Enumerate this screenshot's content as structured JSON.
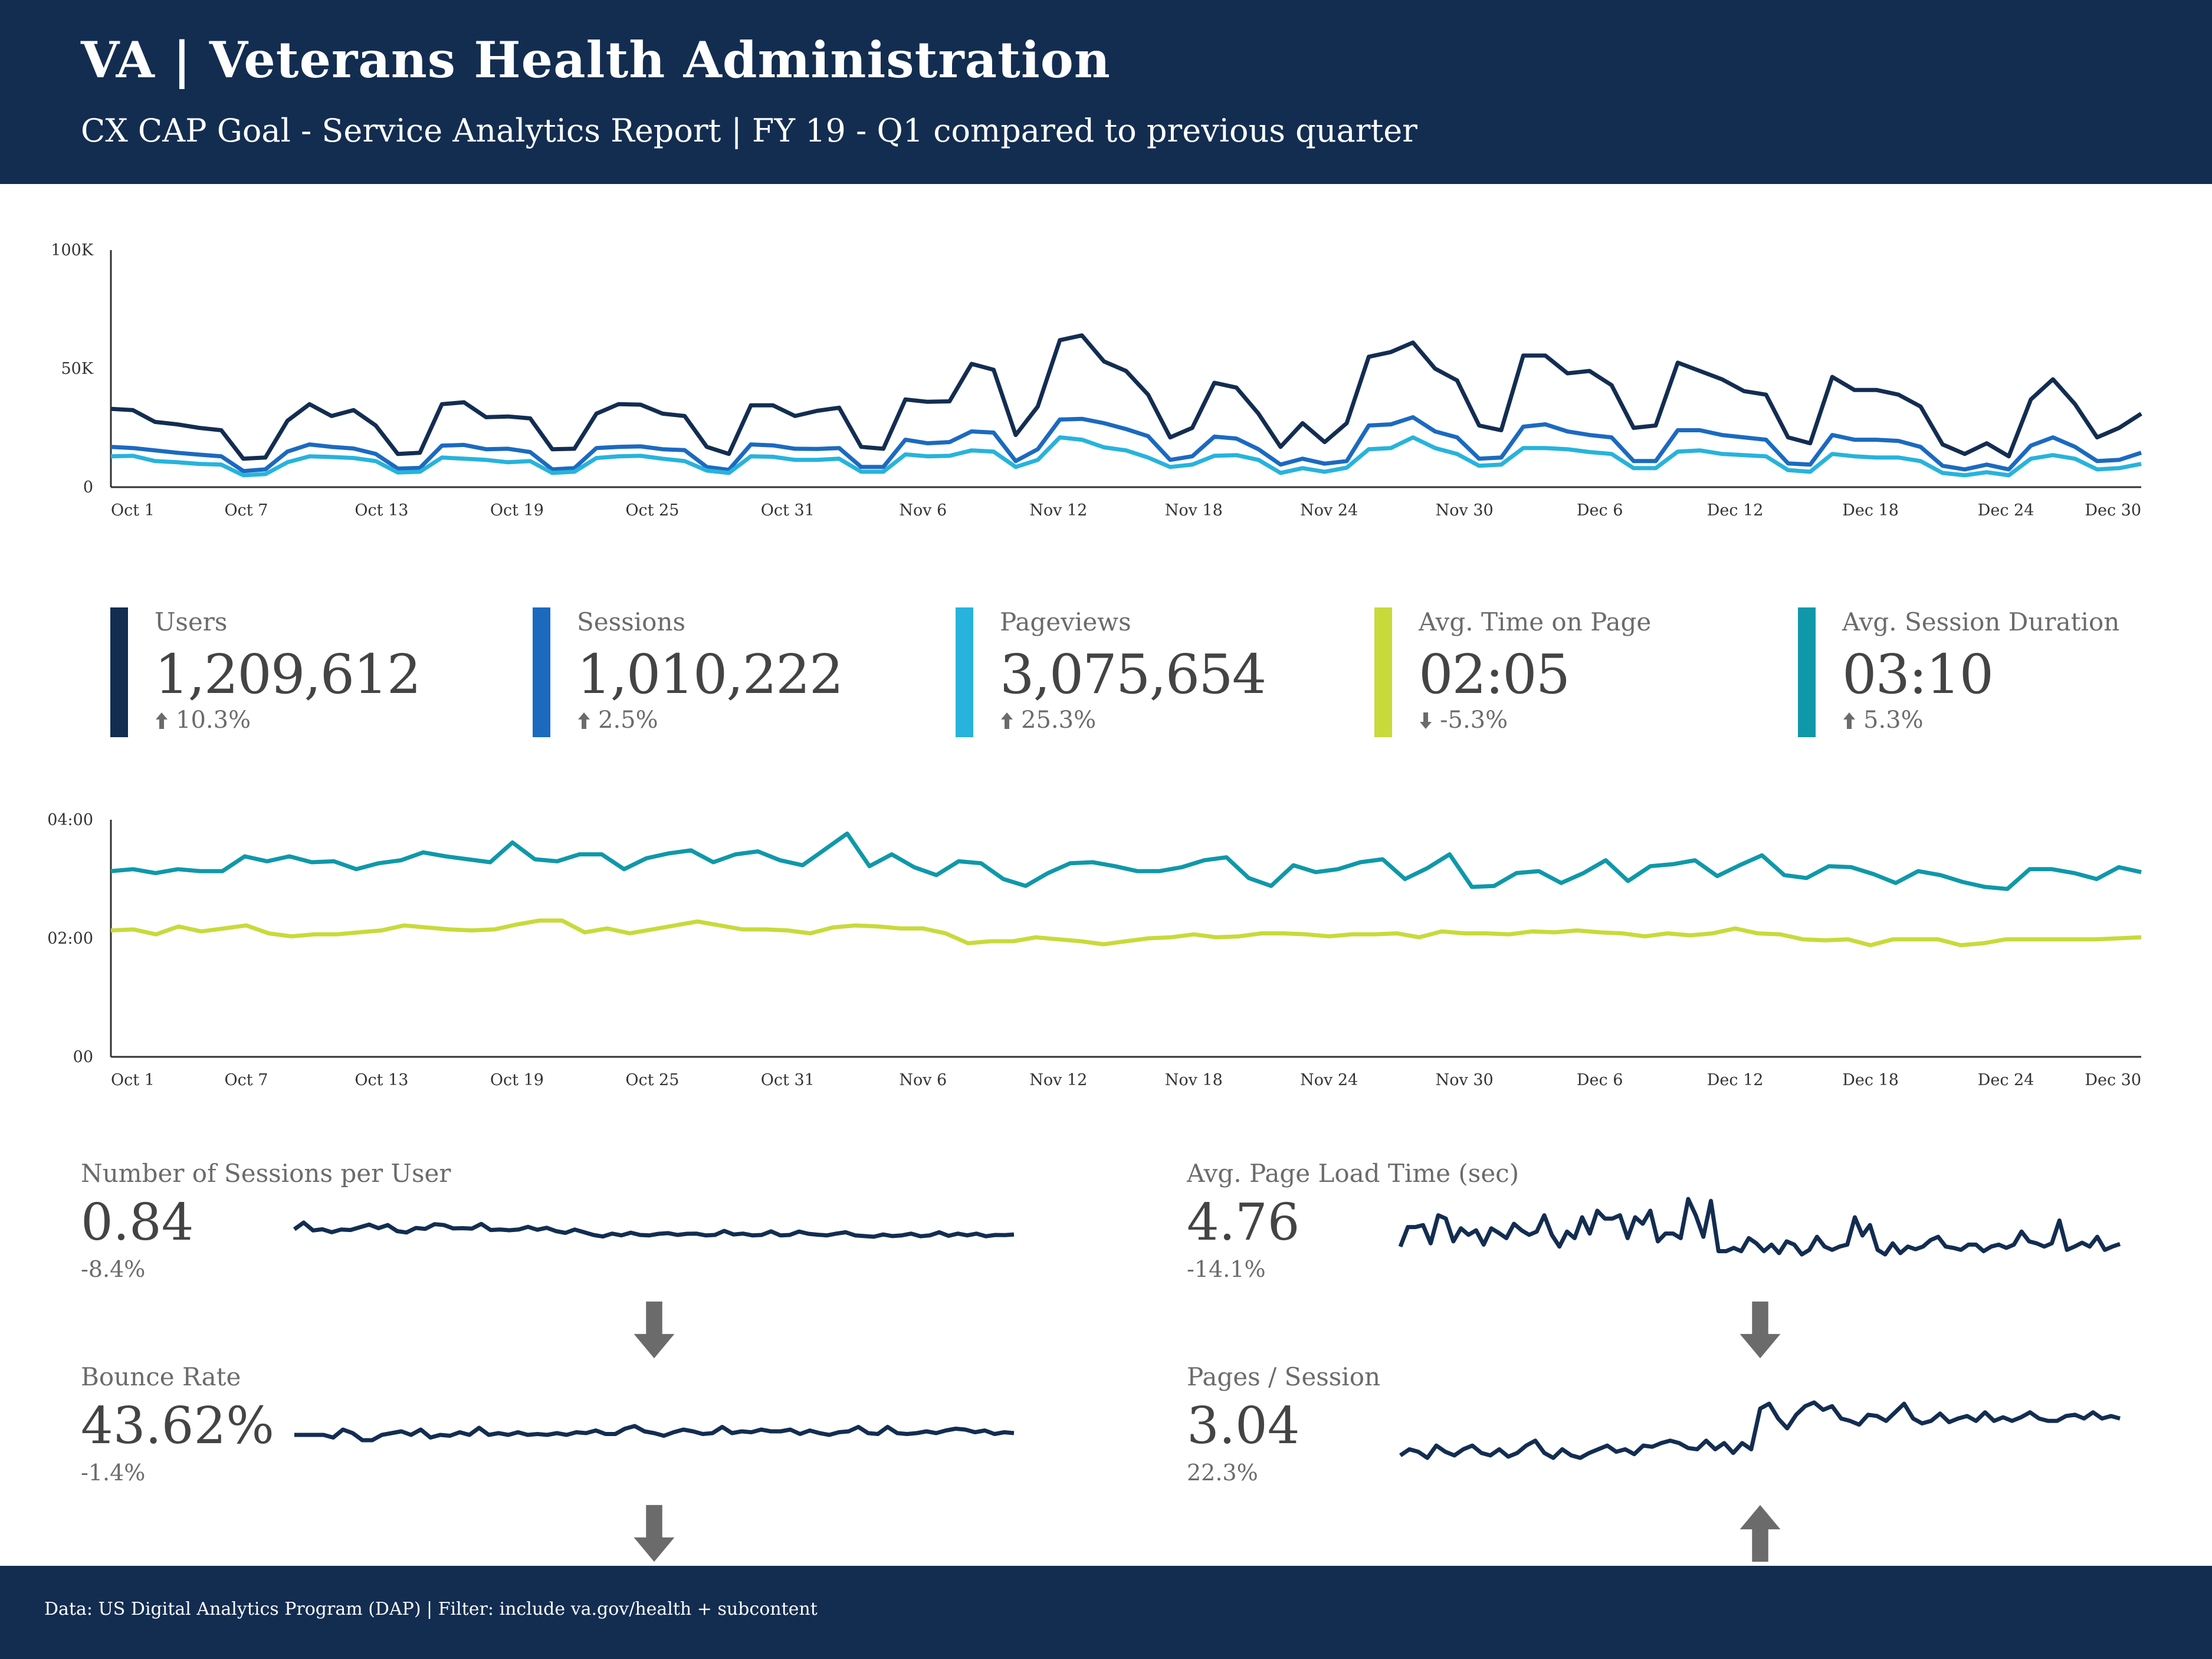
{
  "header": {
    "title": "VA | Veterans Health Administration",
    "subtitle": "CX CAP Goal - Service Analytics Report | FY 19 - Q1 compared to previous quarter"
  },
  "footer": {
    "text": "Data: US Digital Analytics Program (DAP) | Filter: include va.gov/health + subcontent"
  },
  "colors": {
    "header_bg": "#132d51",
    "users": "#132d51",
    "sessions": "#1b6ac0",
    "pageviews": "#27b3dc",
    "avg_time_on_page": "#c8da3a",
    "avg_session_duration": "#0f98a9",
    "sparkline": "#132d51"
  },
  "kpis": [
    {
      "label": "Users",
      "value": "1,209,612",
      "change": "10.3%",
      "direction": "up",
      "color": "#132d51"
    },
    {
      "label": "Sessions",
      "value": "1,010,222",
      "change": "2.5%",
      "direction": "up",
      "color": "#1b6ac0"
    },
    {
      "label": "Pageviews",
      "value": "3,075,654",
      "change": "25.3%",
      "direction": "up",
      "color": "#27b3dc"
    },
    {
      "label": "Avg. Time on Page",
      "value": "02:05",
      "change": "-5.3%",
      "direction": "down",
      "color": "#c8da3a"
    },
    {
      "label": "Avg. Session Duration",
      "value": "03:10",
      "change": "5.3%",
      "direction": "up",
      "color": "#0f98a9"
    }
  ],
  "metrics": [
    {
      "label": "Number of Sessions per User",
      "value": "0.84",
      "change": "-8.4%",
      "direction": "down"
    },
    {
      "label": "Avg. Page Load Time (sec)",
      "value": "4.76",
      "change": "-14.1%",
      "direction": "down"
    },
    {
      "label": "Bounce Rate",
      "value": "43.62%",
      "change": "-1.4%",
      "direction": "down"
    },
    {
      "label": "Pages / Session",
      "value": "3.04",
      "change": "22.3%",
      "direction": "up"
    }
  ],
  "chart_data": [
    {
      "type": "line",
      "title": "",
      "x_tick_labels": [
        "Oct 1",
        "Oct 7",
        "Oct 13",
        "Oct 19",
        "Oct 25",
        "Oct 31",
        "Nov 6",
        "Nov 12",
        "Nov 18",
        "Nov 24",
        "Nov 30",
        "Dec 6",
        "Dec 12",
        "Dec 18",
        "Dec 24",
        "Dec 30"
      ],
      "y_tick_labels": [
        "0",
        "50K",
        "100K"
      ],
      "ylim": [
        0,
        100000
      ],
      "grid": false,
      "series": [
        {
          "key": "users",
          "color": "#132d51",
          "values": [
            33000,
            32500,
            27500,
            26500,
            25000,
            24000,
            12000,
            12500,
            28000,
            35000,
            30000,
            32500,
            26000,
            14000,
            14500,
            35000,
            35800,
            29500,
            29800,
            29000,
            16000,
            16200,
            31000,
            35000,
            34800,
            31000,
            30000,
            17000,
            14000,
            34500,
            34500,
            30000,
            32200,
            33500,
            17000,
            16200,
            37000,
            36000,
            36200,
            52000,
            49500,
            22000,
            34000,
            62000,
            64000,
            53000,
            49000,
            39000,
            21000,
            25000,
            44000,
            42000,
            31000,
            17000,
            27000,
            19000,
            27000,
            55000,
            57000,
            61000,
            50000,
            45000,
            26000,
            24000,
            55500,
            55500,
            48000,
            49000,
            43000,
            25000,
            26000,
            52500,
            49000,
            45500,
            40500,
            39000,
            21000,
            18500,
            46500,
            41000,
            41000,
            39000,
            34000,
            18000,
            14000,
            18500,
            13000,
            37000,
            45500,
            35000,
            21000,
            25000,
            31000
          ]
        },
        {
          "key": "sessions",
          "color": "#1b6ac0",
          "values": [
            17000,
            16500,
            15500,
            14500,
            13700,
            13000,
            6800,
            7500,
            15000,
            18000,
            17000,
            16300,
            14000,
            7800,
            8100,
            17500,
            17800,
            16000,
            16200,
            14800,
            7500,
            8000,
            16500,
            17000,
            17200,
            16000,
            15600,
            8500,
            7300,
            18000,
            17600,
            16200,
            16100,
            16500,
            8500,
            8500,
            20000,
            18500,
            19000,
            23500,
            23000,
            11000,
            16000,
            28500,
            28800,
            27000,
            24500,
            21500,
            11500,
            13000,
            21300,
            20500,
            16000,
            9500,
            12000,
            9900,
            11000,
            26000,
            26500,
            29500,
            23500,
            21000,
            12000,
            12500,
            25500,
            26500,
            23500,
            22000,
            21000,
            11000,
            11000,
            24000,
            24000,
            22000,
            21000,
            20000,
            10000,
            9500,
            22000,
            20000,
            20000,
            19500,
            17000,
            9000,
            7500,
            9500,
            7500,
            17500,
            21000,
            17000,
            11000,
            11500,
            14500
          ]
        },
        {
          "key": "pageviews",
          "color": "#27b3dc",
          "values": [
            13000,
            13200,
            11000,
            10500,
            9800,
            9500,
            5000,
            5500,
            10500,
            13000,
            12700,
            12300,
            11000,
            6200,
            6500,
            12500,
            12000,
            11500,
            10500,
            11000,
            6000,
            6500,
            12300,
            13000,
            13200,
            12000,
            11000,
            7000,
            6000,
            13000,
            12800,
            11500,
            11500,
            12000,
            6500,
            6500,
            13800,
            13000,
            13200,
            15500,
            15000,
            8500,
            11500,
            21000,
            20000,
            16800,
            15500,
            12500,
            8500,
            9500,
            13200,
            13500,
            11500,
            6000,
            8000,
            6500,
            8200,
            16000,
            16500,
            21000,
            16500,
            14000,
            9000,
            9500,
            16500,
            16500,
            16000,
            14800,
            14000,
            8000,
            8000,
            15000,
            15500,
            14000,
            13500,
            13000,
            7200,
            6500,
            14000,
            13000,
            12500,
            12500,
            11000,
            6000,
            5000,
            6300,
            5000,
            12000,
            13500,
            12000,
            7500,
            8000,
            9800
          ]
        }
      ]
    },
    {
      "type": "line",
      "title": "",
      "x_tick_labels": [
        "Oct 1",
        "Oct 7",
        "Oct 13",
        "Oct 19",
        "Oct 25",
        "Oct 31",
        "Nov 6",
        "Nov 12",
        "Nov 18",
        "Nov 24",
        "Nov 30",
        "Dec 6",
        "Dec 12",
        "Dec 18",
        "Dec 24",
        "Dec 30"
      ],
      "y_tick_labels": [
        "00",
        "02:00",
        "04:00"
      ],
      "ylim": [
        0,
        240
      ],
      "ylim_units": "seconds",
      "grid": false,
      "series": [
        {
          "key": "avg_session_duration",
          "color": "#0f98a9",
          "values": [
            188,
            190,
            186,
            190,
            188,
            188,
            203,
            198,
            203,
            197,
            198,
            190,
            196,
            199,
            207,
            203,
            200,
            197,
            217,
            200,
            198,
            205,
            205,
            190,
            201,
            206,
            209,
            197,
            205,
            208,
            199,
            194,
            210,
            226,
            193,
            205,
            192,
            184,
            198,
            196,
            180,
            173,
            186,
            196,
            197,
            193,
            188,
            188,
            192,
            199,
            202,
            181,
            173,
            194,
            187,
            190,
            197,
            200,
            180,
            191,
            205,
            172,
            173,
            186,
            188,
            176,
            186,
            199,
            178,
            193,
            195,
            199,
            183,
            194,
            204,
            184,
            181,
            193,
            192,
            185,
            176,
            188,
            184,
            177,
            172,
            170,
            190,
            190,
            186,
            180,
            192,
            187
          ]
        },
        {
          "key": "avg_time_on_page",
          "color": "#c8da3a",
          "values": [
            128,
            129,
            124,
            132,
            127,
            130,
            133,
            125,
            122,
            124,
            124,
            126,
            128,
            133,
            131,
            129,
            128,
            129,
            134,
            138,
            138,
            126,
            130,
            125,
            129,
            133,
            137,
            133,
            129,
            129,
            128,
            125,
            131,
            133,
            132,
            130,
            130,
            125,
            115,
            117,
            117,
            121,
            119,
            117,
            114,
            117,
            120,
            121,
            124,
            121,
            122,
            125,
            125,
            124,
            122,
            124,
            124,
            125,
            121,
            127,
            125,
            125,
            124,
            127,
            126,
            128,
            126,
            125,
            122,
            125,
            123,
            125,
            130,
            125,
            124,
            119,
            118,
            119,
            113,
            119,
            119,
            119,
            113,
            115,
            119,
            119,
            119,
            119,
            119,
            120,
            121
          ]
        }
      ]
    },
    {
      "type": "line",
      "title": "Number of Sessions per User",
      "series": [
        {
          "key": "sessions_per_user",
          "color": "#132d51",
          "values": [
            0.865,
            0.895,
            0.86,
            0.865,
            0.852,
            0.864,
            0.862,
            0.874,
            0.886,
            0.87,
            0.884,
            0.857,
            0.851,
            0.871,
            0.867,
            0.888,
            0.884,
            0.869,
            0.87,
            0.868,
            0.889,
            0.862,
            0.864,
            0.861,
            0.864,
            0.876,
            0.863,
            0.872,
            0.857,
            0.849,
            0.864,
            0.852,
            0.84,
            0.833,
            0.846,
            0.838,
            0.85,
            0.84,
            0.838,
            0.845,
            0.848,
            0.84,
            0.845,
            0.846,
            0.838,
            0.84,
            0.858,
            0.842,
            0.846,
            0.838,
            0.84,
            0.856,
            0.838,
            0.84,
            0.855,
            0.845,
            0.841,
            0.838,
            0.846,
            0.852,
            0.838,
            0.835,
            0.832,
            0.842,
            0.835,
            0.838,
            0.846,
            0.834,
            0.838,
            0.852,
            0.836,
            0.846,
            0.838,
            0.846,
            0.834,
            0.84,
            0.839,
            0.842
          ]
        }
      ]
    },
    {
      "type": "line",
      "title": "Avg. Page Load Time (sec)",
      "series": [
        {
          "key": "avg_page_load_time",
          "color": "#132d51",
          "values": [
            4.75,
            5.05,
            5.05,
            5.08,
            4.8,
            5.23,
            5.18,
            4.83,
            5.03,
            4.93,
            5.0,
            4.78,
            5.03,
            4.96,
            4.88,
            5.1,
            5.0,
            4.93,
            4.98,
            5.23,
            4.93,
            4.75,
            4.98,
            4.88,
            5.2,
            4.95,
            5.3,
            5.18,
            5.18,
            5.23,
            4.88,
            5.2,
            5.1,
            5.3,
            4.83,
            4.95,
            4.95,
            4.88,
            5.48,
            5.23,
            4.9,
            5.45,
            4.68,
            4.68,
            4.73,
            4.68,
            4.88,
            4.8,
            4.68,
            4.78,
            4.65,
            4.83,
            4.78,
            4.63,
            4.7,
            4.9,
            4.75,
            4.7,
            4.75,
            4.78,
            5.2,
            4.92,
            5.08,
            4.7,
            4.63,
            4.8,
            4.65,
            4.75,
            4.71,
            4.75,
            4.85,
            4.9,
            4.75,
            4.73,
            4.7,
            4.78,
            4.78,
            4.68,
            4.75,
            4.78,
            4.73,
            4.78,
            4.98,
            4.83,
            4.8,
            4.75,
            4.8,
            5.15,
            4.7,
            4.75,
            4.81,
            4.75,
            4.9,
            4.7,
            4.75,
            4.79
          ]
        }
      ]
    },
    {
      "type": "line",
      "title": "Bounce Rate",
      "series": [
        {
          "key": "bounce_rate",
          "color": "#132d51",
          "values": [
            43.6,
            43.6,
            43.6,
            43.6,
            43.3,
            44.2,
            43.8,
            43.0,
            43.0,
            43.6,
            43.8,
            44.0,
            43.6,
            44.2,
            43.3,
            43.6,
            43.5,
            43.9,
            43.6,
            44.4,
            43.6,
            43.8,
            43.6,
            43.9,
            43.6,
            43.7,
            43.6,
            43.8,
            43.6,
            43.9,
            43.8,
            44.1,
            43.7,
            43.7,
            44.3,
            44.6,
            44.0,
            43.8,
            43.5,
            43.9,
            44.2,
            44.0,
            43.7,
            43.8,
            44.5,
            43.8,
            44.0,
            43.9,
            44.2,
            44.0,
            44.0,
            44.2,
            43.7,
            44.1,
            43.8,
            43.6,
            43.9,
            44.0,
            44.5,
            43.8,
            43.7,
            44.5,
            43.8,
            43.7,
            43.8,
            44.0,
            43.8,
            44.1,
            44.3,
            44.2,
            43.9,
            44.1,
            43.7,
            43.9,
            43.8
          ]
        }
      ]
    },
    {
      "type": "line",
      "title": "Pages / Session",
      "series": [
        {
          "key": "pages_per_session",
          "color": "#132d51",
          "values": [
            2.6,
            2.65,
            2.63,
            2.58,
            2.68,
            2.63,
            2.6,
            2.65,
            2.68,
            2.62,
            2.6,
            2.65,
            2.59,
            2.62,
            2.68,
            2.72,
            2.62,
            2.58,
            2.65,
            2.6,
            2.58,
            2.62,
            2.65,
            2.68,
            2.63,
            2.65,
            2.61,
            2.68,
            2.67,
            2.7,
            2.72,
            2.7,
            2.66,
            2.65,
            2.72,
            2.65,
            2.7,
            2.62,
            2.7,
            2.65,
            2.98,
            3.02,
            2.9,
            2.82,
            2.93,
            3.0,
            3.03,
            2.97,
            3.0,
            2.9,
            2.88,
            2.85,
            2.93,
            2.92,
            2.88,
            2.95,
            3.02,
            2.9,
            2.86,
            2.88,
            2.94,
            2.87,
            2.9,
            2.92,
            2.88,
            2.95,
            2.88,
            2.91,
            2.88,
            2.91,
            2.95,
            2.9,
            2.88,
            2.88,
            2.92,
            2.93,
            2.9,
            2.95,
            2.9,
            2.92,
            2.9
          ]
        }
      ]
    }
  ]
}
